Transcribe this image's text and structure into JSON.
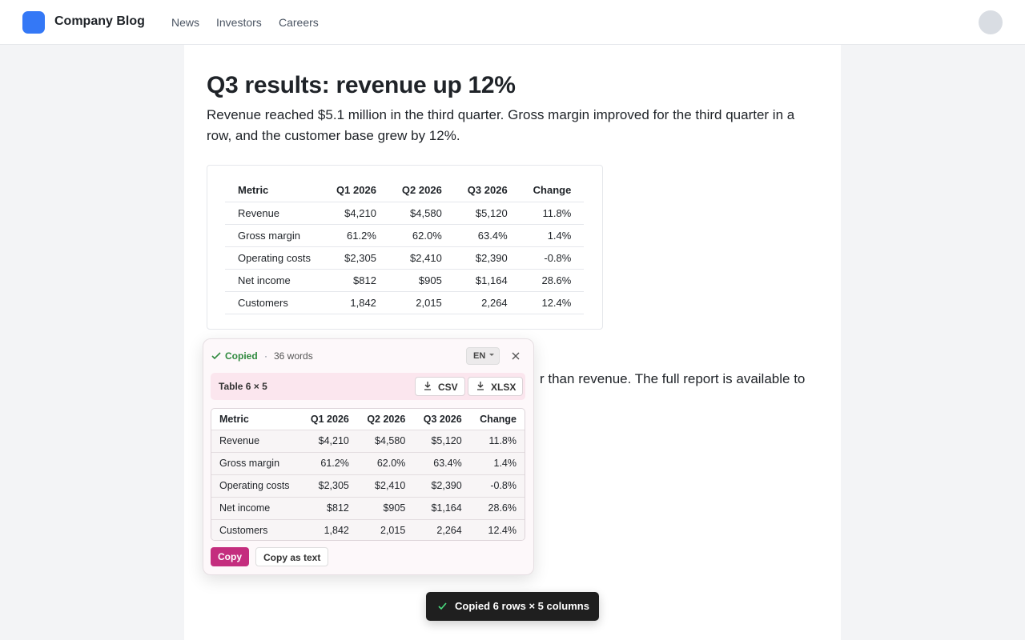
{
  "header": {
    "brand": "Company Blog",
    "nav": [
      "News",
      "Investors",
      "Careers"
    ]
  },
  "article": {
    "title": "Q3 results: revenue up 12%",
    "intro": "Revenue reached $5.1 million in the third quarter. Gross margin improved for the third quarter in a row, and the customer base grew by 12%.",
    "table": {
      "columns": [
        "Metric",
        "Q1 2026",
        "Q2 2026",
        "Q3 2026",
        "Change"
      ],
      "rows": [
        [
          "Revenue",
          "$4,210",
          "$4,580",
          "$5,120",
          "11.8%"
        ],
        [
          "Gross margin",
          "61.2%",
          "62.0%",
          "63.4%",
          "1.4%"
        ],
        [
          "Operating costs",
          "$2,305",
          "$2,410",
          "$2,390",
          "-0.8%"
        ],
        [
          "Net income",
          "$812",
          "$905",
          "$1,164",
          "28.6%"
        ],
        [
          "Customers",
          "1,842",
          "2,015",
          "2,264",
          "12.4%"
        ]
      ]
    },
    "paragraph_fragment": "r than revenue. The full report is available to"
  },
  "popup": {
    "status": "Copied",
    "separator": "·",
    "word_count": "36 words",
    "language": "EN",
    "table_label": "Table 6 × 5",
    "downloads": [
      "CSV",
      "XLSX"
    ],
    "actions": [
      "Copy",
      "Copy as text"
    ]
  },
  "toast": "Copied 6 rows × 5 columns"
}
